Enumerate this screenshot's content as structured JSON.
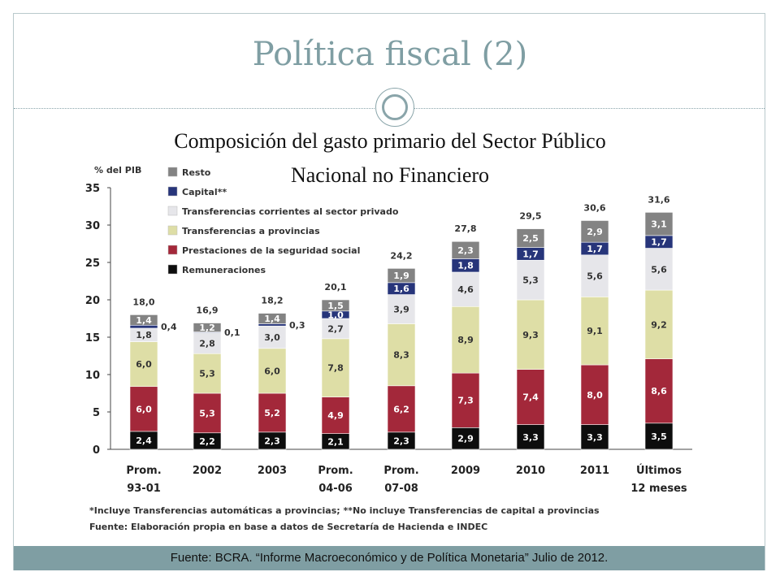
{
  "slide": {
    "title": "Política fiscal (2)",
    "subtitle_line1": "Composición del gasto primario del Sector Público",
    "subtitle_line2": "Nacional no Financiero",
    "footer": "Fuente: BCRA. “Informe Macroeconómico y de Política Monetaria” Julio de 2012.",
    "note1": "*Incluye Transferencias automáticas a provincias; **No incluye Transferencias de capital a provincias",
    "note2": "Fuente: Elaboración propia en base a datos de Secretaría de Hacienda e INDEC",
    "accent_color": "#7f9ea3"
  },
  "chart_data": {
    "type": "bar",
    "stacked": true,
    "ylabel": "% del PIB",
    "ylim": [
      0,
      35
    ],
    "yticks": [
      0,
      5,
      10,
      15,
      20,
      25,
      30,
      35
    ],
    "grid": false,
    "legend_position": "top-left",
    "categories": [
      [
        "Prom.",
        "93-01"
      ],
      [
        "2002"
      ],
      [
        "2003"
      ],
      [
        "Prom.",
        "04-06"
      ],
      [
        "Prom.",
        "07-08"
      ],
      [
        "2009"
      ],
      [
        "2010"
      ],
      [
        "2011"
      ],
      [
        "Últimos",
        "12 meses"
      ]
    ],
    "totals": [
      "18,0",
      "16,9",
      "18,2",
      "20,1",
      "24,2",
      "27,8",
      "29,5",
      "30,6",
      "31,6"
    ],
    "series": [
      {
        "name": "Remuneraciones",
        "color": "#0d0d0d",
        "label_color": "#ffffff",
        "values": [
          2.4,
          2.2,
          2.3,
          2.1,
          2.3,
          2.9,
          3.3,
          3.3,
          3.5
        ],
        "labels": [
          "2,4",
          "2,2",
          "2,3",
          "2,1",
          "2,3",
          "2,9",
          "3,3",
          "3,3",
          "3,5"
        ]
      },
      {
        "name": "Prestaciones de la seguridad social",
        "color": "#a3283a",
        "label_color": "#ffffff",
        "values": [
          6.0,
          5.3,
          5.2,
          4.9,
          6.2,
          7.3,
          7.4,
          8.0,
          8.6
        ],
        "labels": [
          "6,0",
          "5,3",
          "5,2",
          "4,9",
          "6,2",
          "7,3",
          "7,4",
          "8,0",
          "8,6"
        ]
      },
      {
        "name": "Transferencias a provincias",
        "color": "#dedea6",
        "label_color": "#333333",
        "values": [
          6.0,
          5.3,
          6.0,
          7.8,
          8.3,
          8.9,
          9.3,
          9.1,
          9.2
        ],
        "labels": [
          "6,0",
          "5,3",
          "6,0",
          "7,8",
          "8,3",
          "8,9",
          "9,3",
          "9,1",
          "9,2"
        ]
      },
      {
        "name": "Transferencias corrientes al sector privado",
        "color": "#e6e6ea",
        "label_color": "#333333",
        "values": [
          1.8,
          2.8,
          3.0,
          2.7,
          3.9,
          4.6,
          5.3,
          5.6,
          5.6
        ],
        "labels": [
          "1,8",
          "2,8",
          "3,0",
          "2,7",
          "3,9",
          "4,6",
          "5,3",
          "5,6",
          "5,6"
        ]
      },
      {
        "name": "Capital**",
        "color": "#27357a",
        "label_color": "#ffffff",
        "values": [
          0.4,
          0.1,
          0.3,
          1.0,
          1.6,
          1.8,
          1.7,
          1.7,
          1.7
        ],
        "labels": [
          "0,4",
          "0,1",
          "0,3",
          "1,0",
          "1,6",
          "1,8",
          "1,7",
          "1,7",
          "1,7"
        ]
      },
      {
        "name": "Resto",
        "color": "#838383",
        "label_color": "#ffffff",
        "values": [
          1.4,
          1.2,
          1.4,
          1.5,
          1.9,
          2.3,
          2.5,
          2.9,
          3.1
        ],
        "labels": [
          "1,4",
          "1,2",
          "1,4",
          "1,5",
          "1,9",
          "2,3",
          "2,5",
          "2,9",
          "3,1"
        ]
      }
    ]
  }
}
